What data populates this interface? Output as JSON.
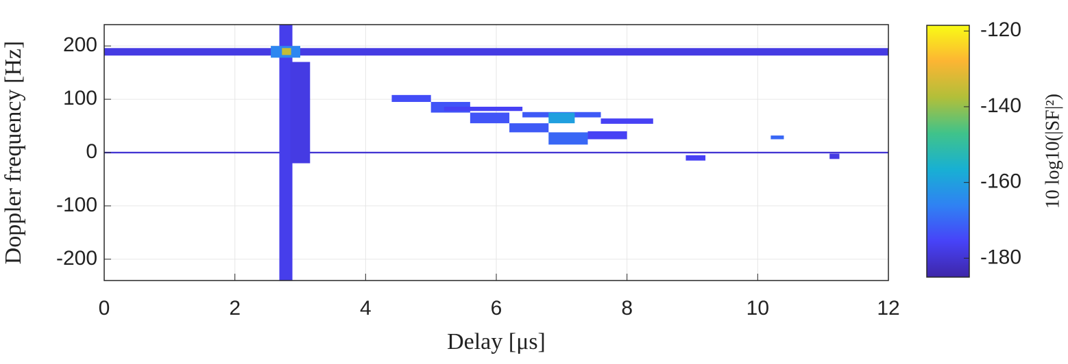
{
  "chart_data": {
    "type": "heatmap",
    "xlabel": "Delay [μs]",
    "ylabel": "Doppler frequency [Hz]",
    "colorbar_label": "10 log10(|SF|²)",
    "xlim": [
      0,
      12
    ],
    "xticks": [
      0,
      2,
      4,
      6,
      8,
      10,
      12
    ],
    "ylim": [
      -240,
      240
    ],
    "yticks": [
      -200,
      -100,
      0,
      100,
      200
    ],
    "clim": [
      -185,
      -118.5
    ],
    "cticks": [
      -180,
      -160,
      -140,
      -120
    ],
    "colormap": [
      "#3e26a8",
      "#4743f8",
      "#2f82f3",
      "#18b0d3",
      "#40c38a",
      "#b2bf39",
      "#fcb533",
      "#f9fb15"
    ],
    "grid": true,
    "regions": [
      {
        "x": [
          0,
          12
        ],
        "y": [
          182,
          196
        ],
        "value": -178
      },
      {
        "x": [
          0,
          12
        ],
        "y": [
          -1.5,
          1.5
        ],
        "value": -180
      },
      {
        "x": [
          2.68,
          2.88
        ],
        "y": [
          -240,
          240
        ],
        "value": -177
      },
      {
        "x": [
          2.85,
          3.15
        ],
        "y": [
          -20,
          170
        ],
        "value": -178
      },
      {
        "x": [
          2.55,
          3.0
        ],
        "y": [
          178,
          200
        ],
        "value": -165
      },
      {
        "x": [
          2.72,
          2.86
        ],
        "y": [
          183,
          196
        ],
        "value": -135
      },
      {
        "x": [
          4.4,
          5.0
        ],
        "y": [
          95,
          108
        ],
        "value": -174
      },
      {
        "x": [
          5.0,
          5.6
        ],
        "y": [
          75,
          95
        ],
        "value": -173
      },
      {
        "x": [
          5.6,
          6.2
        ],
        "y": [
          55,
          75
        ],
        "value": -173
      },
      {
        "x": [
          6.2,
          6.8
        ],
        "y": [
          38,
          55
        ],
        "value": -172
      },
      {
        "x": [
          6.8,
          7.4
        ],
        "y": [
          15,
          38
        ],
        "value": -170
      },
      {
        "x": [
          5.2,
          6.4
        ],
        "y": [
          78,
          86
        ],
        "value": -176
      },
      {
        "x": [
          6.4,
          7.6
        ],
        "y": [
          66,
          76
        ],
        "value": -172
      },
      {
        "x": [
          7.6,
          8.4
        ],
        "y": [
          54,
          64
        ],
        "value": -176
      },
      {
        "x": [
          6.8,
          7.2
        ],
        "y": [
          55,
          75
        ],
        "value": -160
      },
      {
        "x": [
          7.4,
          8.0
        ],
        "y": [
          25,
          40
        ],
        "value": -176
      },
      {
        "x": [
          8.9,
          9.2
        ],
        "y": [
          -15,
          -5
        ],
        "value": -176
      },
      {
        "x": [
          10.2,
          10.4
        ],
        "y": [
          25,
          32
        ],
        "value": -170
      },
      {
        "x": [
          11.1,
          11.25
        ],
        "y": [
          -12,
          -2
        ],
        "value": -178
      }
    ]
  }
}
